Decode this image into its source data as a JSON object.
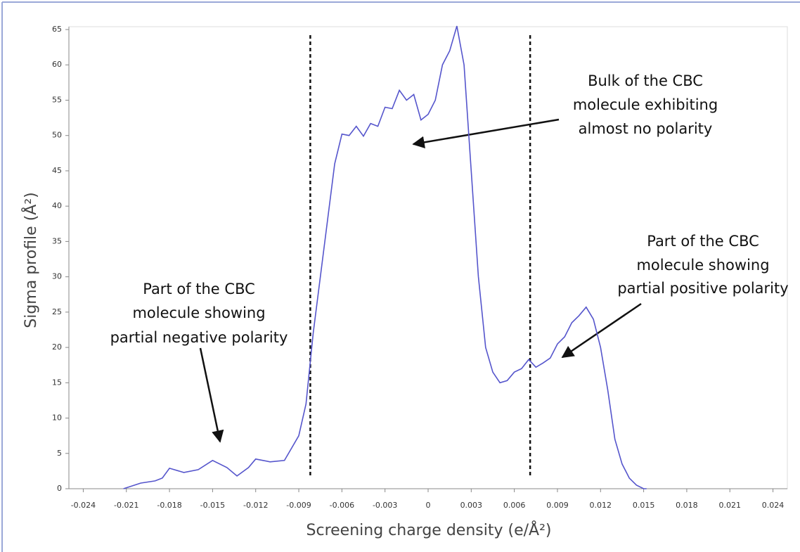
{
  "chart_data": {
    "type": "line",
    "xlabel": "Screening charge density (e/Å²)",
    "ylabel": "Sigma profile (Å²)",
    "color": "#5555cc",
    "x": [
      -0.0212,
      -0.02,
      -0.019,
      -0.0185,
      -0.018,
      -0.017,
      -0.016,
      -0.015,
      -0.014,
      -0.0133,
      -0.0125,
      -0.012,
      -0.011,
      -0.01,
      -0.009,
      -0.0085,
      -0.008,
      -0.0075,
      -0.007,
      -0.0065,
      -0.006,
      -0.0055,
      -0.005,
      -0.0045,
      -0.004,
      -0.0035,
      -0.003,
      -0.0025,
      -0.002,
      -0.0015,
      -0.001,
      -0.0005,
      0,
      0.0005,
      0.001,
      0.0015,
      0.002,
      0.0025,
      0.003,
      0.0035,
      0.004,
      0.0045,
      0.005,
      0.0055,
      0.006,
      0.0065,
      0.007,
      0.0075,
      0.008,
      0.0085,
      0.009,
      0.0095,
      0.01,
      0.0105,
      0.011,
      0.0115,
      0.012,
      0.0125,
      0.013,
      0.0135,
      0.014,
      0.0145,
      0.015,
      0.0152
    ],
    "values": [
      0,
      0.8,
      1.1,
      1.5,
      2.9,
      2.3,
      2.7,
      4.0,
      3.0,
      1.8,
      3.0,
      4.2,
      3.8,
      4.0,
      7.5,
      12,
      22,
      30,
      38,
      46,
      50.2,
      50.0,
      51.3,
      49.9,
      51.7,
      51.3,
      54,
      53.8,
      56.4,
      55.0,
      55.8,
      52.2,
      53,
      55,
      60,
      62,
      65.5,
      60,
      45,
      30,
      20,
      16.5,
      15,
      15.3,
      16.5,
      17,
      18.3,
      17.2,
      17.8,
      18.5,
      20.5,
      21.5,
      23.5,
      24.5,
      25.7,
      24,
      20,
      14,
      7,
      3.5,
      1.5,
      0.5,
      0,
      0
    ],
    "vlines": [
      -0.0082,
      0.0071
    ],
    "xlim": [
      -0.025,
      0.025
    ],
    "xticks": [
      -0.024,
      -0.021,
      -0.018,
      -0.015,
      -0.012,
      -0.009,
      -0.006,
      -0.003,
      0,
      0.003,
      0.006,
      0.009,
      0.012,
      0.015,
      0.018,
      0.021,
      0.024
    ],
    "ylim": [
      0,
      65.4
    ],
    "yticks": [
      0,
      5,
      10,
      15,
      20,
      25,
      30,
      35,
      40,
      45,
      50,
      55,
      60,
      65
    ],
    "annotations": [
      {
        "lines": [
          "Part of the CBC",
          "molecule showing",
          "partial negative polarity"
        ]
      },
      {
        "lines": [
          "Bulk of the CBC",
          "molecule exhibiting",
          "almost no polarity"
        ]
      },
      {
        "lines": [
          "Part of the CBC",
          "molecule showing",
          "partial positive polarity"
        ]
      }
    ]
  }
}
